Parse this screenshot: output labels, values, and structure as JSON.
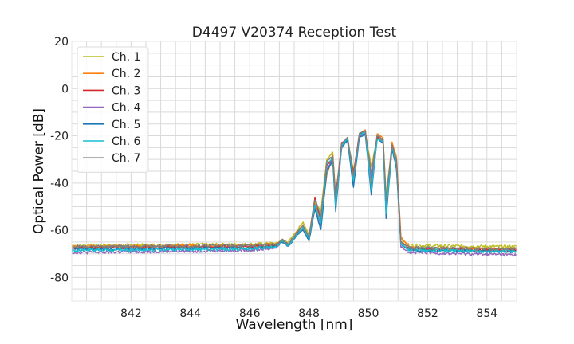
{
  "chart_data": {
    "type": "line",
    "title": "D4497 V20374 Reception Test",
    "xlabel": "Wavelength [nm]",
    "ylabel": "Optical Power [dB]",
    "xlim": [
      840.0,
      855.0
    ],
    "ylim": [
      -90,
      20
    ],
    "xticks": [
      842,
      844,
      846,
      848,
      850,
      852,
      854
    ],
    "yticks": [
      20,
      0,
      -20,
      -40,
      -60,
      -80
    ],
    "grid": true,
    "legend_position": "top-left",
    "series": [
      {
        "name": "Ch. 1",
        "color": "#bcbd22",
        "shift": 0.0,
        "floor": -66.5,
        "points": [
          [
            840.0,
            -66.5
          ],
          [
            846.0,
            -66.0
          ],
          [
            846.9,
            -65.5
          ],
          [
            847.1,
            -64.0
          ],
          [
            847.3,
            -65.0
          ],
          [
            847.6,
            -60.0
          ],
          [
            847.8,
            -56.5
          ],
          [
            848.0,
            -62.0
          ],
          [
            848.2,
            -48.0
          ],
          [
            848.4,
            -52.0
          ],
          [
            848.6,
            -30.0
          ],
          [
            848.8,
            -27.0
          ],
          [
            848.9,
            -45.0
          ],
          [
            849.1,
            -24.0
          ],
          [
            849.3,
            -21.0
          ],
          [
            849.5,
            -35.0
          ],
          [
            849.7,
            -20.0
          ],
          [
            849.9,
            -18.5
          ],
          [
            850.1,
            -33.0
          ],
          [
            850.3,
            -21.0
          ],
          [
            850.5,
            -22.0
          ],
          [
            850.6,
            -45.0
          ],
          [
            850.8,
            -24.5
          ],
          [
            850.95,
            -30.0
          ],
          [
            851.1,
            -64.0
          ],
          [
            851.4,
            -66.5
          ],
          [
            855.0,
            -67.0
          ]
        ]
      },
      {
        "name": "Ch. 2",
        "color": "#ff7f0e",
        "shift": 0.1,
        "floor": -67.0,
        "points": [
          [
            840.0,
            -67.0
          ],
          [
            846.0,
            -66.5
          ],
          [
            846.9,
            -66.0
          ],
          [
            847.1,
            -64.5
          ],
          [
            847.3,
            -66.0
          ],
          [
            847.6,
            -61.0
          ],
          [
            847.8,
            -58.0
          ],
          [
            848.0,
            -63.0
          ],
          [
            848.2,
            -49.0
          ],
          [
            848.4,
            -55.0
          ],
          [
            848.6,
            -37.0
          ],
          [
            848.8,
            -28.0
          ],
          [
            848.9,
            -47.0
          ],
          [
            849.1,
            -25.0
          ],
          [
            849.3,
            -21.0
          ],
          [
            849.5,
            -38.0
          ],
          [
            849.7,
            -19.5
          ],
          [
            849.9,
            -17.5
          ],
          [
            850.1,
            -40.0
          ],
          [
            850.3,
            -19.0
          ],
          [
            850.5,
            -21.0
          ],
          [
            850.6,
            -48.0
          ],
          [
            850.8,
            -22.5
          ],
          [
            850.95,
            -29.0
          ],
          [
            851.1,
            -63.0
          ],
          [
            851.4,
            -67.5
          ],
          [
            855.0,
            -68.0
          ]
        ]
      },
      {
        "name": "Ch. 3",
        "color": "#d62728",
        "shift": -0.05,
        "floor": -67.5,
        "points": [
          [
            840.0,
            -67.5
          ],
          [
            846.0,
            -67.0
          ],
          [
            846.9,
            -66.5
          ],
          [
            847.1,
            -64.0
          ],
          [
            847.3,
            -66.0
          ],
          [
            847.6,
            -61.0
          ],
          [
            847.8,
            -59.0
          ],
          [
            848.0,
            -63.0
          ],
          [
            848.2,
            -46.0
          ],
          [
            848.4,
            -56.0
          ],
          [
            848.6,
            -33.0
          ],
          [
            848.8,
            -29.0
          ],
          [
            848.9,
            -46.0
          ],
          [
            849.1,
            -23.0
          ],
          [
            849.3,
            -21.5
          ],
          [
            849.5,
            -36.0
          ],
          [
            849.7,
            -19.0
          ],
          [
            849.9,
            -19.5
          ],
          [
            850.1,
            -42.0
          ],
          [
            850.3,
            -20.5
          ],
          [
            850.5,
            -23.0
          ],
          [
            850.6,
            -50.0
          ],
          [
            850.8,
            -24.0
          ],
          [
            850.95,
            -31.0
          ],
          [
            851.1,
            -65.0
          ],
          [
            851.4,
            -68.0
          ],
          [
            855.0,
            -68.5
          ]
        ]
      },
      {
        "name": "Ch. 4",
        "color": "#9467bd",
        "shift": 0.05,
        "floor": -69.5,
        "points": [
          [
            840.0,
            -69.5
          ],
          [
            846.0,
            -68.5
          ],
          [
            846.9,
            -67.5
          ],
          [
            847.1,
            -64.5
          ],
          [
            847.3,
            -66.5
          ],
          [
            847.6,
            -62.0
          ],
          [
            847.8,
            -59.5
          ],
          [
            848.0,
            -64.0
          ],
          [
            848.2,
            -50.0
          ],
          [
            848.4,
            -58.0
          ],
          [
            848.6,
            -34.0
          ],
          [
            848.8,
            -30.0
          ],
          [
            848.9,
            -49.0
          ],
          [
            849.1,
            -24.0
          ],
          [
            849.3,
            -22.0
          ],
          [
            849.5,
            -40.0
          ],
          [
            849.7,
            -20.0
          ],
          [
            849.9,
            -19.0
          ],
          [
            850.1,
            -38.0
          ],
          [
            850.3,
            -20.0
          ],
          [
            850.5,
            -22.0
          ],
          [
            850.6,
            -52.0
          ],
          [
            850.8,
            -25.0
          ],
          [
            850.95,
            -33.0
          ],
          [
            851.1,
            -67.0
          ],
          [
            851.4,
            -69.5
          ],
          [
            855.0,
            -70.5
          ]
        ]
      },
      {
        "name": "Ch. 5",
        "color": "#1f77b4",
        "shift": -0.1,
        "floor": -68.0,
        "points": [
          [
            840.0,
            -68.0
          ],
          [
            846.0,
            -67.5
          ],
          [
            846.9,
            -67.0
          ],
          [
            847.1,
            -65.0
          ],
          [
            847.3,
            -67.0
          ],
          [
            847.6,
            -62.0
          ],
          [
            847.8,
            -60.0
          ],
          [
            848.0,
            -64.5
          ],
          [
            848.2,
            -51.0
          ],
          [
            848.4,
            -60.0
          ],
          [
            848.6,
            -35.0
          ],
          [
            848.8,
            -30.5
          ],
          [
            848.9,
            -52.0
          ],
          [
            849.1,
            -25.0
          ],
          [
            849.3,
            -22.0
          ],
          [
            849.5,
            -42.0
          ],
          [
            849.7,
            -20.5
          ],
          [
            849.9,
            -19.5
          ],
          [
            850.1,
            -45.0
          ],
          [
            850.3,
            -21.0
          ],
          [
            850.5,
            -23.5
          ],
          [
            850.6,
            -55.0
          ],
          [
            850.8,
            -25.5
          ],
          [
            850.95,
            -34.0
          ],
          [
            851.1,
            -66.0
          ],
          [
            851.4,
            -68.5
          ],
          [
            855.0,
            -69.0
          ]
        ]
      },
      {
        "name": "Ch. 6",
        "color": "#17becf",
        "shift": 0.02,
        "floor": -68.5,
        "points": [
          [
            840.0,
            -68.5
          ],
          [
            846.0,
            -68.0
          ],
          [
            846.9,
            -67.0
          ],
          [
            847.1,
            -64.5
          ],
          [
            847.3,
            -66.5
          ],
          [
            847.6,
            -61.5
          ],
          [
            847.8,
            -59.0
          ],
          [
            848.0,
            -63.5
          ],
          [
            848.2,
            -49.5
          ],
          [
            848.4,
            -57.0
          ],
          [
            848.6,
            -32.0
          ],
          [
            848.8,
            -29.5
          ],
          [
            848.9,
            -50.0
          ],
          [
            849.1,
            -24.5
          ],
          [
            849.3,
            -21.0
          ],
          [
            849.5,
            -39.0
          ],
          [
            849.7,
            -19.5
          ],
          [
            849.9,
            -18.5
          ],
          [
            850.1,
            -43.0
          ],
          [
            850.3,
            -21.5
          ],
          [
            850.5,
            -22.5
          ],
          [
            850.6,
            -53.0
          ],
          [
            850.8,
            -24.5
          ],
          [
            850.95,
            -32.5
          ],
          [
            851.1,
            -66.0
          ],
          [
            851.4,
            -68.5
          ],
          [
            855.0,
            -69.0
          ]
        ]
      },
      {
        "name": "Ch. 7",
        "color": "#7f7f7f",
        "shift": -0.02,
        "floor": -67.0,
        "points": [
          [
            840.0,
            -67.0
          ],
          [
            846.0,
            -66.5
          ],
          [
            846.9,
            -66.0
          ],
          [
            847.1,
            -64.0
          ],
          [
            847.3,
            -66.0
          ],
          [
            847.6,
            -60.5
          ],
          [
            847.8,
            -58.0
          ],
          [
            848.0,
            -63.0
          ],
          [
            848.2,
            -47.0
          ],
          [
            848.4,
            -54.0
          ],
          [
            848.6,
            -31.0
          ],
          [
            848.8,
            -28.5
          ],
          [
            848.9,
            -47.0
          ],
          [
            849.1,
            -23.5
          ],
          [
            849.3,
            -20.5
          ],
          [
            849.5,
            -37.0
          ],
          [
            849.7,
            -19.0
          ],
          [
            849.9,
            -18.0
          ],
          [
            850.1,
            -36.0
          ],
          [
            850.3,
            -20.0
          ],
          [
            850.5,
            -21.5
          ],
          [
            850.6,
            -47.0
          ],
          [
            850.8,
            -24.0
          ],
          [
            850.95,
            -30.5
          ],
          [
            851.1,
            -65.0
          ],
          [
            851.4,
            -67.5
          ],
          [
            855.0,
            -68.0
          ]
        ]
      }
    ]
  }
}
